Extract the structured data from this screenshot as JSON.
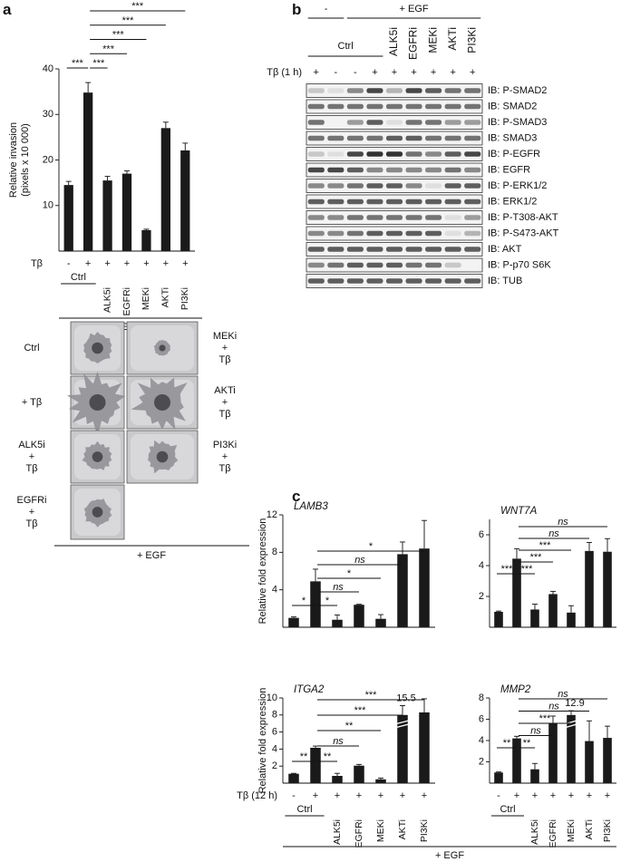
{
  "panel_labels": [
    "a",
    "b",
    "c"
  ],
  "chart_data": [
    {
      "type": "bar",
      "ylabel": [
        "Relative invasion",
        "(pixels x 10 000)"
      ],
      "ylim": [
        0,
        40
      ],
      "yticks": [
        10,
        20,
        30,
        40
      ],
      "color": "#1a1a1a",
      "treatment_label": "Tβ",
      "treatment": [
        "-",
        "+",
        "+",
        "+",
        "+",
        "+",
        "+"
      ],
      "group_label": "Ctrl",
      "categories": [
        null,
        null,
        "ALK5i",
        "EGFRi",
        "MEKi",
        "AKTi",
        "PI3Ki"
      ],
      "egf_label": "+ EGF",
      "values": [
        14.5,
        34.8,
        15.5,
        17.0,
        4.6,
        27.0,
        22.1
      ],
      "errors": [
        0.8,
        2.2,
        0.9,
        0.6,
        0.2,
        1.3,
        1.6
      ],
      "comparisons": [
        {
          "bars": [
            0,
            1
          ],
          "label": "***"
        },
        {
          "bars": [
            1,
            2
          ],
          "label": "***"
        },
        {
          "bars": [
            1,
            3
          ],
          "label": "***"
        },
        {
          "bars": [
            1,
            4
          ],
          "label": "***"
        },
        {
          "bars": [
            1,
            5
          ],
          "label": "***"
        },
        {
          "bars": [
            1,
            6
          ],
          "label": "***"
        }
      ]
    },
    {
      "type": "bar",
      "title": "LAMB3",
      "ylabel": "Relative fold expression",
      "ylim": [
        0,
        12
      ],
      "yticks": [
        4,
        8,
        12
      ],
      "color": "#1a1a1a",
      "values": [
        1.0,
        4.9,
        0.8,
        2.4,
        0.9,
        7.8,
        8.4
      ],
      "errors": [
        0.1,
        1.3,
        0.5,
        0.05,
        0.45,
        1.3,
        3.0
      ],
      "comparisons": [
        {
          "bars": [
            0,
            1
          ],
          "label": "*"
        },
        {
          "bars": [
            1,
            2
          ],
          "label": "*"
        },
        {
          "bars": [
            1,
            3
          ],
          "label": "ns"
        },
        {
          "bars": [
            1,
            4
          ],
          "label": "*"
        },
        {
          "bars": [
            1,
            5
          ],
          "label": "ns"
        },
        {
          "bars": [
            1,
            6
          ],
          "label": "*"
        }
      ]
    },
    {
      "type": "bar",
      "title": "WNT7A",
      "ylim": [
        0,
        7
      ],
      "yticks": [
        2,
        4,
        6
      ],
      "color": "#1a1a1a",
      "values": [
        1.0,
        4.45,
        1.15,
        2.15,
        0.95,
        4.95,
        4.9
      ],
      "errors": [
        0.05,
        0.65,
        0.35,
        0.18,
        0.45,
        0.55,
        0.85
      ],
      "comparisons": [
        {
          "bars": [
            0,
            1
          ],
          "label": "***"
        },
        {
          "bars": [
            1,
            2
          ],
          "label": "***"
        },
        {
          "bars": [
            1,
            3
          ],
          "label": "***"
        },
        {
          "bars": [
            1,
            4
          ],
          "label": "***"
        },
        {
          "bars": [
            1,
            5
          ],
          "label": "ns"
        },
        {
          "bars": [
            1,
            6
          ],
          "label": "ns"
        }
      ]
    },
    {
      "type": "bar",
      "title": "ITGA2",
      "ylabel": "Relative fold expression",
      "ylim": [
        0,
        10
      ],
      "yticks": [
        2,
        4,
        6,
        8,
        10
      ],
      "color": "#1a1a1a",
      "treatment_label": "Tβ (12 h)",
      "treatment": [
        "-",
        "+",
        "+",
        "+",
        "+",
        "+",
        "+"
      ],
      "group_label": "Ctrl",
      "categories": [
        null,
        null,
        "ALK5i",
        "EGFRi",
        "MEKi",
        "AKTi",
        "PI3Ki"
      ],
      "values": [
        1.1,
        4.15,
        0.85,
        2.05,
        0.45,
        15.5,
        8.3
      ],
      "value_labels": [
        null,
        null,
        null,
        null,
        null,
        "15.5",
        null
      ],
      "errors": [
        0.05,
        0.2,
        0.3,
        0.15,
        0.15,
        1.1,
        1.6
      ],
      "comparisons": [
        {
          "bars": [
            0,
            1
          ],
          "label": "**"
        },
        {
          "bars": [
            1,
            2
          ],
          "label": "**"
        },
        {
          "bars": [
            1,
            3
          ],
          "label": "ns"
        },
        {
          "bars": [
            1,
            4
          ],
          "label": "**"
        },
        {
          "bars": [
            1,
            5
          ],
          "label": "***"
        },
        {
          "bars": [
            1,
            6
          ],
          "label": "***"
        }
      ]
    },
    {
      "type": "bar",
      "title": "MMP2",
      "ylim": [
        0,
        8
      ],
      "yticks": [
        2,
        4,
        6,
        8
      ],
      "color": "#1a1a1a",
      "treatment": [
        "-",
        "+",
        "+",
        "+",
        "+",
        "+",
        "+"
      ],
      "group_label": "Ctrl",
      "categories": [
        null,
        null,
        "ALK5i",
        "EGFRi",
        "MEKi",
        "AKTi",
        "PI3Ki"
      ],
      "values": [
        1.0,
        4.2,
        1.3,
        5.6,
        12.9,
        3.95,
        4.25
      ],
      "value_labels": [
        null,
        null,
        null,
        null,
        "12.9",
        null,
        null
      ],
      "errors": [
        0.05,
        0.2,
        0.55,
        0.7,
        0.4,
        1.9,
        1.1
      ],
      "comparisons": [
        {
          "bars": [
            0,
            1
          ],
          "label": "**"
        },
        {
          "bars": [
            1,
            2
          ],
          "label": "**"
        },
        {
          "bars": [
            1,
            3
          ],
          "label": "ns"
        },
        {
          "bars": [
            1,
            4
          ],
          "label": "***"
        },
        {
          "bars": [
            1,
            5
          ],
          "label": "ns"
        },
        {
          "bars": [
            1,
            6
          ],
          "label": "ns"
        }
      ]
    }
  ],
  "c_egf_label": "+ EGF",
  "invasion_images": {
    "left": [
      [
        "Ctrl"
      ],
      [
        "+ Tβ"
      ],
      [
        "ALK5i",
        "+",
        "Tβ"
      ],
      [
        "EGFRi",
        "+",
        "Tβ"
      ]
    ],
    "right": [
      [
        "MEKi",
        "+",
        "Tβ"
      ],
      [
        "AKTi",
        "+",
        "Tβ"
      ],
      [
        "PI3Ki",
        "+",
        "Tβ"
      ]
    ],
    "egf_label": "+ EGF"
  },
  "blot": {
    "minus_label": "-",
    "egf_label": "+ EGF",
    "ctrl_label": "Ctrl",
    "lanes": [
      null,
      null,
      null,
      null,
      "ALK5i",
      "EGFRi",
      "MEKi",
      "AKTi",
      "PI3Ki"
    ],
    "treatment_label": "Tβ (1 h)",
    "treatment": [
      "+",
      "-",
      "-",
      "+",
      "+",
      "+",
      "+",
      "+",
      "+"
    ],
    "rows": [
      "IB: P-SMAD2",
      "IB: SMAD2",
      "IB: P-SMAD3",
      "IB: SMAD3",
      "IB: P-EGFR",
      "IB: EGFR",
      "IB: P-ERK1/2",
      "IB: ERK1/2",
      "IB: P-T308-AKT",
      "IB: P-S473-AKT",
      "IB: AKT",
      "IB: P-p70 S6K",
      "IB: TUB"
    ]
  }
}
